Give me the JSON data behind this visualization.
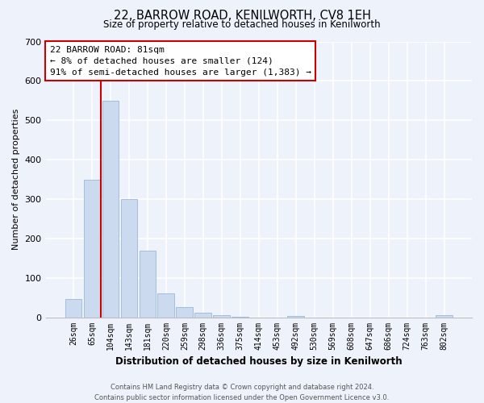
{
  "title_line1": "22, BARROW ROAD, KENILWORTH, CV8 1EH",
  "title_line2": "Size of property relative to detached houses in Kenilworth",
  "xlabel": "Distribution of detached houses by size in Kenilworth",
  "ylabel": "Number of detached properties",
  "bar_labels": [
    "26sqm",
    "65sqm",
    "104sqm",
    "143sqm",
    "181sqm",
    "220sqm",
    "259sqm",
    "298sqm",
    "336sqm",
    "375sqm",
    "414sqm",
    "453sqm",
    "492sqm",
    "530sqm",
    "569sqm",
    "608sqm",
    "647sqm",
    "686sqm",
    "724sqm",
    "763sqm",
    "802sqm"
  ],
  "bar_values": [
    47,
    350,
    550,
    300,
    168,
    60,
    25,
    12,
    5,
    1,
    0,
    0,
    3,
    0,
    0,
    0,
    0,
    0,
    0,
    0,
    5
  ],
  "bar_color": "#ccdaf0",
  "bar_edge_color": "#99b8d8",
  "vline_color": "#cc0000",
  "vline_x_index": 1.5,
  "annotation_box_text": "22 BARROW ROAD: 81sqm\n← 8% of detached houses are smaller (124)\n91% of semi-detached houses are larger (1,383) →",
  "annotation_box_facecolor": "white",
  "annotation_box_edgecolor": "#cc0000",
  "ylim": [
    0,
    700
  ],
  "yticks": [
    0,
    100,
    200,
    300,
    400,
    500,
    600,
    700
  ],
  "footer_line1": "Contains HM Land Registry data © Crown copyright and database right 2024.",
  "footer_line2": "Contains public sector information licensed under the Open Government Licence v3.0.",
  "bg_color": "#eef2fb",
  "plot_bg_color": "#eef2fb",
  "grid_color": "#ffffff",
  "title1_fontsize": 10.5,
  "title2_fontsize": 8.5,
  "xlabel_fontsize": 8.5,
  "ylabel_fontsize": 8,
  "annot_fontsize": 8,
  "tick_fontsize": 7,
  "footer_fontsize": 6
}
